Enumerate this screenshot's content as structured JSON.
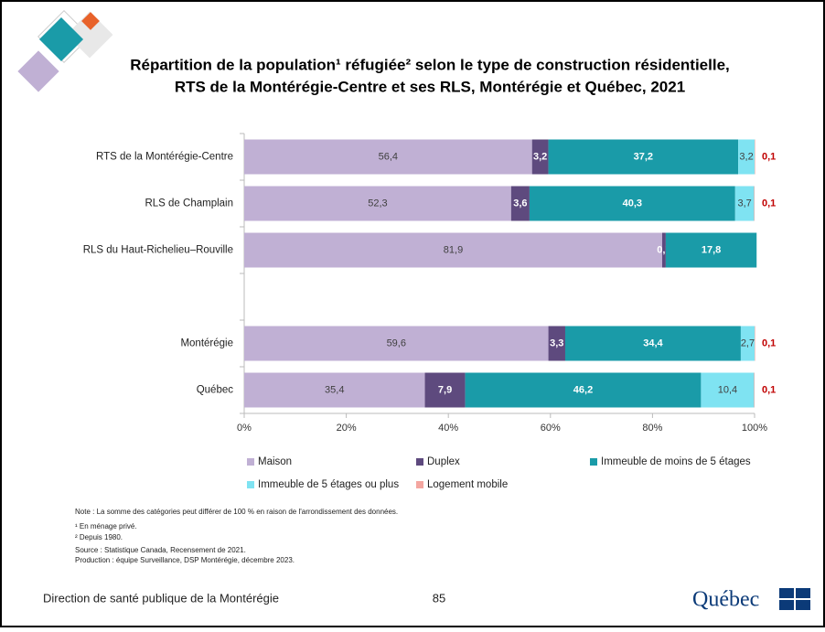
{
  "chart_data": {
    "type": "stacked-barh",
    "title": [
      "Répartition de la population¹ réfugiée² selon le type de construction résidentielle,",
      "RTS de la Montérégie-Centre et ses RLS, Montérégie et Québec, 2021"
    ],
    "categories": [
      "RTS de la Montérégie-Centre",
      "RLS de Champlain",
      "RLS du Haut-Richelieu–Rouville",
      null,
      "Montérégie",
      "Québec"
    ],
    "series": [
      {
        "name": "Maison",
        "color": "#c0b0d4",
        "values": [
          56.4,
          52.3,
          81.9,
          null,
          59.6,
          35.4
        ],
        "value_labels": [
          "56,4",
          "52,3",
          "81,9",
          null,
          "59,6",
          "35,4"
        ]
      },
      {
        "name": "Duplex",
        "color": "#5e4a7e",
        "values": [
          3.2,
          3.6,
          0.7,
          null,
          3.3,
          7.9
        ],
        "value_labels": [
          "3,2",
          "3,6",
          "0,7",
          null,
          "3,3",
          "7,9"
        ]
      },
      {
        "name": "Immeuble de moins de 5 étages",
        "color": "#1a9ba8",
        "values": [
          37.2,
          40.3,
          17.8,
          null,
          34.4,
          46.2
        ],
        "value_labels": [
          "37,2",
          "40,3",
          "17,8",
          null,
          "34,4",
          "46,2"
        ]
      },
      {
        "name": "Immeuble de 5 étages ou plus",
        "color": "#7fe3f2",
        "values": [
          3.2,
          3.7,
          null,
          null,
          2.7,
          10.4
        ],
        "value_labels": [
          "3,2",
          "3,7",
          null,
          null,
          "2,7",
          "10,4"
        ]
      },
      {
        "name": "Logement mobile",
        "color": "#f4a6a0",
        "values": [
          0.1,
          0.1,
          null,
          null,
          0.1,
          0.1
        ],
        "value_labels": [
          "0,1",
          "0,1",
          null,
          null,
          "0,1",
          "0,1"
        ]
      }
    ],
    "xlim": [
      0,
      100
    ],
    "xticks": [
      {
        "value": 0,
        "label": "0%"
      },
      {
        "value": 20,
        "label": "20%"
      },
      {
        "value": 40,
        "label": "40%"
      },
      {
        "value": 60,
        "label": "60%"
      },
      {
        "value": 80,
        "label": "80%"
      },
      {
        "value": 100,
        "label": "100%"
      }
    ],
    "grid": false
  },
  "notes": [
    "Note : La somme des catégories peut différer de 100 % en raison de l'arrondissement des données.",
    "¹ En ménage privé.",
    "² Depuis 1980.",
    "Source : Statistique Canada, Recensement de 2021.",
    "Production : équipe Surveillance, DSP Montérégie, décembre 2023."
  ],
  "footer": {
    "organization": "Direction de santé publique de la Montérégie",
    "page_number": "85",
    "logo": "Québec"
  }
}
